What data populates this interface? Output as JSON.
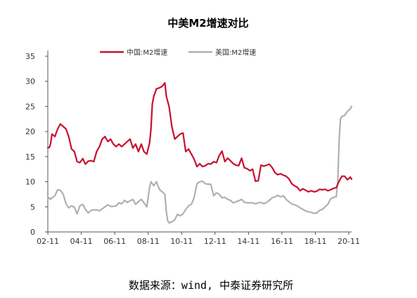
{
  "chart_data": {
    "type": "line",
    "title": "中美M2增速对比",
    "source": "数据来源：wind, 中泰证券研究所",
    "xlabel": "",
    "ylabel": "",
    "ylim": [
      0,
      35
    ],
    "yticks": [
      "0",
      "5",
      "10",
      "15",
      "20",
      "25",
      "30",
      "35"
    ],
    "xticks": [
      "02-11",
      "04-11",
      "06-11",
      "08-11",
      "10-11",
      "12-11",
      "14-11",
      "16-11",
      "18-11",
      "20-11"
    ],
    "legend": "top",
    "grid": false,
    "series": [
      {
        "name": "中国:M2增速",
        "color": "#c8102e",
        "points": [
          [
            2002.83,
            16.8
          ],
          [
            2002.92,
            16.8
          ],
          [
            2003.0,
            17.6
          ],
          [
            2003.08,
            19.5
          ],
          [
            2003.25,
            19.0
          ],
          [
            2003.42,
            20.5
          ],
          [
            2003.58,
            21.5
          ],
          [
            2003.75,
            21.0
          ],
          [
            2003.92,
            20.5
          ],
          [
            2004.08,
            19.0
          ],
          [
            2004.25,
            16.5
          ],
          [
            2004.42,
            16.0
          ],
          [
            2004.58,
            14.0
          ],
          [
            2004.75,
            13.8
          ],
          [
            2004.92,
            14.6
          ],
          [
            2005.08,
            13.5
          ],
          [
            2005.25,
            14.1
          ],
          [
            2005.42,
            14.2
          ],
          [
            2005.58,
            14.0
          ],
          [
            2005.75,
            16.0
          ],
          [
            2005.92,
            17.0
          ],
          [
            2006.08,
            18.5
          ],
          [
            2006.25,
            19.0
          ],
          [
            2006.42,
            18.0
          ],
          [
            2006.58,
            18.5
          ],
          [
            2006.75,
            17.5
          ],
          [
            2006.92,
            17.0
          ],
          [
            2007.08,
            17.5
          ],
          [
            2007.25,
            17.0
          ],
          [
            2007.42,
            17.5
          ],
          [
            2007.58,
            18.0
          ],
          [
            2007.75,
            18.5
          ],
          [
            2007.92,
            16.7
          ],
          [
            2008.08,
            17.5
          ],
          [
            2008.25,
            16.0
          ],
          [
            2008.42,
            17.5
          ],
          [
            2008.58,
            16.0
          ],
          [
            2008.75,
            15.5
          ],
          [
            2008.92,
            17.8
          ],
          [
            2009.0,
            20.5
          ],
          [
            2009.08,
            25.5
          ],
          [
            2009.17,
            27.0
          ],
          [
            2009.33,
            28.5
          ],
          [
            2009.5,
            28.7
          ],
          [
            2009.67,
            29.0
          ],
          [
            2009.83,
            29.7
          ],
          [
            2009.92,
            27.0
          ],
          [
            2010.0,
            26.0
          ],
          [
            2010.08,
            25.0
          ],
          [
            2010.25,
            21.0
          ],
          [
            2010.42,
            18.5
          ],
          [
            2010.58,
            19.0
          ],
          [
            2010.75,
            19.5
          ],
          [
            2010.92,
            19.7
          ],
          [
            2011.08,
            16.0
          ],
          [
            2011.25,
            16.5
          ],
          [
            2011.42,
            15.5
          ],
          [
            2011.58,
            14.5
          ],
          [
            2011.75,
            13.0
          ],
          [
            2011.92,
            13.6
          ],
          [
            2012.08,
            13.0
          ],
          [
            2012.25,
            13.2
          ],
          [
            2012.42,
            13.6
          ],
          [
            2012.58,
            13.5
          ],
          [
            2012.75,
            14.0
          ],
          [
            2012.92,
            13.8
          ],
          [
            2013.08,
            15.2
          ],
          [
            2013.25,
            16.1
          ],
          [
            2013.42,
            14.0
          ],
          [
            2013.58,
            14.7
          ],
          [
            2013.75,
            14.2
          ],
          [
            2013.92,
            13.6
          ],
          [
            2014.08,
            13.3
          ],
          [
            2014.25,
            13.2
          ],
          [
            2014.42,
            14.7
          ],
          [
            2014.58,
            12.8
          ],
          [
            2014.75,
            12.6
          ],
          [
            2014.92,
            12.2
          ],
          [
            2015.08,
            12.5
          ],
          [
            2015.25,
            10.1
          ],
          [
            2015.42,
            10.2
          ],
          [
            2015.58,
            13.3
          ],
          [
            2015.75,
            13.1
          ],
          [
            2015.92,
            13.3
          ],
          [
            2016.08,
            13.5
          ],
          [
            2016.25,
            12.8
          ],
          [
            2016.42,
            11.8
          ],
          [
            2016.58,
            11.4
          ],
          [
            2016.75,
            11.6
          ],
          [
            2016.92,
            11.3
          ],
          [
            2017.08,
            11.1
          ],
          [
            2017.25,
            10.6
          ],
          [
            2017.42,
            9.6
          ],
          [
            2017.58,
            9.2
          ],
          [
            2017.75,
            8.9
          ],
          [
            2017.92,
            8.2
          ],
          [
            2018.08,
            8.6
          ],
          [
            2018.25,
            8.3
          ],
          [
            2018.42,
            8.0
          ],
          [
            2018.58,
            8.2
          ],
          [
            2018.75,
            8.0
          ],
          [
            2018.92,
            8.1
          ],
          [
            2019.08,
            8.5
          ],
          [
            2019.25,
            8.4
          ],
          [
            2019.42,
            8.5
          ],
          [
            2019.58,
            8.2
          ],
          [
            2019.75,
            8.4
          ],
          [
            2019.92,
            8.7
          ],
          [
            2020.08,
            8.8
          ],
          [
            2020.25,
            10.1
          ],
          [
            2020.42,
            11.1
          ],
          [
            2020.58,
            11.1
          ],
          [
            2020.75,
            10.4
          ],
          [
            2020.92,
            10.9
          ],
          [
            2021.0,
            10.5
          ]
        ]
      },
      {
        "name": "美国:M2增速",
        "color": "#b0b0b0",
        "points": [
          [
            2002.83,
            6.5
          ],
          [
            2002.92,
            6.8
          ],
          [
            2003.0,
            6.5
          ],
          [
            2003.08,
            6.8
          ],
          [
            2003.25,
            7.2
          ],
          [
            2003.42,
            8.4
          ],
          [
            2003.58,
            8.3
          ],
          [
            2003.75,
            7.5
          ],
          [
            2003.92,
            5.6
          ],
          [
            2004.08,
            4.8
          ],
          [
            2004.25,
            5.2
          ],
          [
            2004.42,
            4.9
          ],
          [
            2004.58,
            3.6
          ],
          [
            2004.75,
            5.2
          ],
          [
            2004.92,
            5.5
          ],
          [
            2005.08,
            4.5
          ],
          [
            2005.25,
            3.8
          ],
          [
            2005.42,
            4.3
          ],
          [
            2005.58,
            4.4
          ],
          [
            2005.75,
            4.4
          ],
          [
            2005.92,
            4.2
          ],
          [
            2006.08,
            4.6
          ],
          [
            2006.25,
            5.0
          ],
          [
            2006.42,
            5.4
          ],
          [
            2006.58,
            5.1
          ],
          [
            2006.75,
            5.1
          ],
          [
            2006.92,
            5.2
          ],
          [
            2007.08,
            5.8
          ],
          [
            2007.25,
            5.6
          ],
          [
            2007.42,
            6.3
          ],
          [
            2007.58,
            5.9
          ],
          [
            2007.75,
            6.2
          ],
          [
            2007.92,
            6.5
          ],
          [
            2008.08,
            5.5
          ],
          [
            2008.25,
            6.0
          ],
          [
            2008.42,
            6.5
          ],
          [
            2008.58,
            5.8
          ],
          [
            2008.75,
            5.0
          ],
          [
            2008.92,
            9.0
          ],
          [
            2009.0,
            10.0
          ],
          [
            2009.08,
            9.6
          ],
          [
            2009.17,
            9.2
          ],
          [
            2009.33,
            10.0
          ],
          [
            2009.5,
            8.5
          ],
          [
            2009.67,
            8.0
          ],
          [
            2009.83,
            7.5
          ],
          [
            2009.92,
            4.0
          ],
          [
            2010.0,
            2.2
          ],
          [
            2010.08,
            1.8
          ],
          [
            2010.25,
            2.0
          ],
          [
            2010.42,
            2.4
          ],
          [
            2010.58,
            3.5
          ],
          [
            2010.75,
            3.2
          ],
          [
            2010.92,
            3.6
          ],
          [
            2011.08,
            4.5
          ],
          [
            2011.25,
            5.2
          ],
          [
            2011.42,
            5.5
          ],
          [
            2011.58,
            6.8
          ],
          [
            2011.75,
            9.6
          ],
          [
            2011.92,
            10.0
          ],
          [
            2012.08,
            10.1
          ],
          [
            2012.25,
            9.6
          ],
          [
            2012.42,
            9.5
          ],
          [
            2012.58,
            9.5
          ],
          [
            2012.75,
            7.2
          ],
          [
            2012.92,
            7.8
          ],
          [
            2013.08,
            7.5
          ],
          [
            2013.25,
            6.8
          ],
          [
            2013.42,
            6.9
          ],
          [
            2013.58,
            6.5
          ],
          [
            2013.75,
            6.3
          ],
          [
            2013.92,
            5.8
          ],
          [
            2014.08,
            6.0
          ],
          [
            2014.25,
            6.2
          ],
          [
            2014.42,
            6.5
          ],
          [
            2014.58,
            5.9
          ],
          [
            2014.75,
            5.8
          ],
          [
            2014.92,
            5.8
          ],
          [
            2015.08,
            5.8
          ],
          [
            2015.25,
            5.6
          ],
          [
            2015.42,
            5.8
          ],
          [
            2015.58,
            5.9
          ],
          [
            2015.75,
            5.6
          ],
          [
            2015.92,
            5.9
          ],
          [
            2016.08,
            6.3
          ],
          [
            2016.25,
            6.8
          ],
          [
            2016.42,
            7.0
          ],
          [
            2016.58,
            7.3
          ],
          [
            2016.75,
            7.0
          ],
          [
            2016.92,
            7.2
          ],
          [
            2017.08,
            6.5
          ],
          [
            2017.25,
            6.0
          ],
          [
            2017.42,
            5.6
          ],
          [
            2017.58,
            5.4
          ],
          [
            2017.75,
            5.2
          ],
          [
            2017.92,
            4.8
          ],
          [
            2018.08,
            4.5
          ],
          [
            2018.25,
            4.2
          ],
          [
            2018.42,
            4.0
          ],
          [
            2018.58,
            3.9
          ],
          [
            2018.75,
            3.7
          ],
          [
            2018.92,
            3.8
          ],
          [
            2019.08,
            4.3
          ],
          [
            2019.25,
            4.5
          ],
          [
            2019.42,
            5.0
          ],
          [
            2019.58,
            5.5
          ],
          [
            2019.75,
            6.6
          ],
          [
            2019.92,
            6.9
          ],
          [
            2020.08,
            7.0
          ],
          [
            2020.17,
            10.0
          ],
          [
            2020.25,
            18.0
          ],
          [
            2020.33,
            22.5
          ],
          [
            2020.42,
            23.0
          ],
          [
            2020.58,
            23.2
          ],
          [
            2020.75,
            24.0
          ],
          [
            2020.92,
            24.5
          ],
          [
            2021.0,
            25.0
          ]
        ]
      }
    ]
  }
}
